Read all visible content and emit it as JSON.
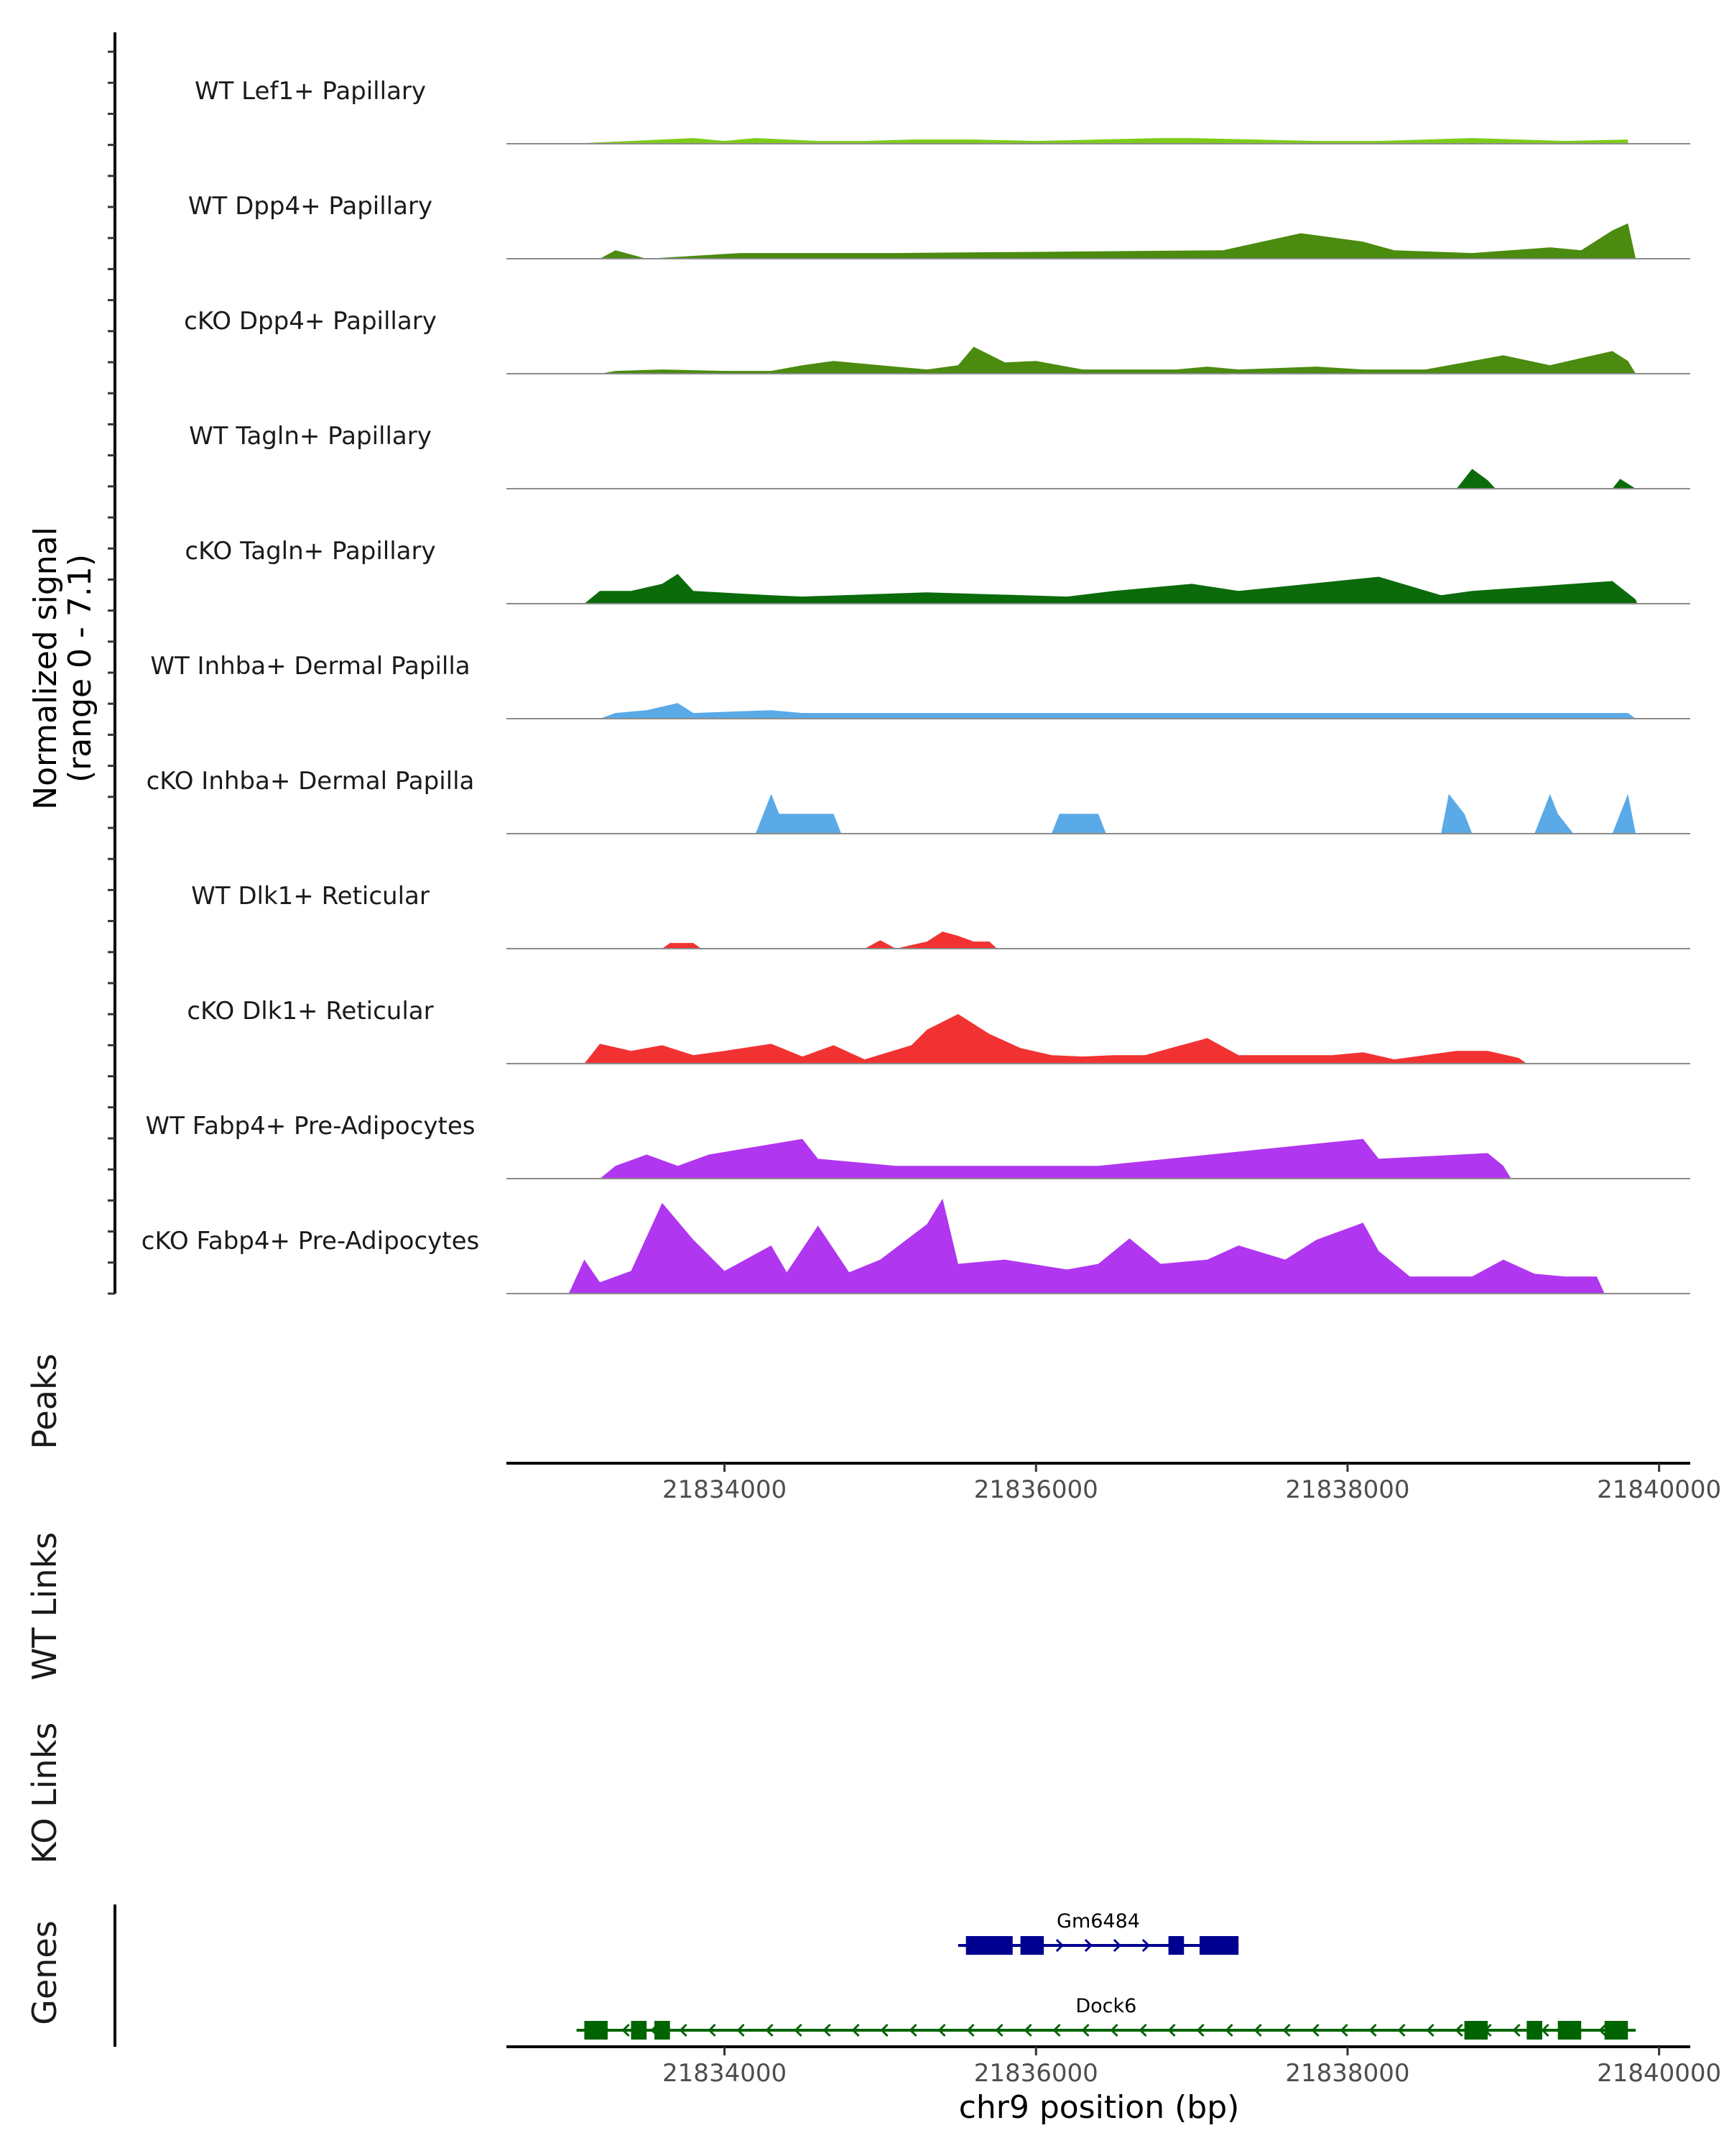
{
  "chart_data": {
    "type": "area",
    "chromosome": "chr9",
    "xlabel": "chr9 position (bp)",
    "xlim": [
      21832600,
      21840200
    ],
    "xticks": [
      21834000,
      21836000,
      21838000,
      21840000
    ],
    "xtick_labels": [
      "21834000",
      "21836000",
      "21838000",
      "21840000"
    ],
    "coverage_ylabel_line1": "Normalized signal",
    "coverage_ylabel_line2": "(range 0 - 7.1)",
    "ylim": [
      0,
      7.1
    ],
    "panel_labels": {
      "peaks": "Peaks",
      "wt_links": "WT Links",
      "ko_links": "KO Links",
      "genes": "Genes"
    },
    "series": [
      {
        "name": "WT Lef1+ Papillary",
        "color": "#7CCD1A",
        "points": [
          [
            21833000,
            0
          ],
          [
            21833400,
            0.2
          ],
          [
            21833600,
            0.3
          ],
          [
            21833800,
            0.4
          ],
          [
            21834000,
            0.2
          ],
          [
            21834200,
            0.4
          ],
          [
            21834400,
            0.3
          ],
          [
            21834600,
            0.2
          ],
          [
            21834900,
            0.2
          ],
          [
            21835200,
            0.3
          ],
          [
            21835600,
            0.3
          ],
          [
            21836000,
            0.2
          ],
          [
            21836400,
            0.3
          ],
          [
            21836800,
            0.4
          ],
          [
            21837000,
            0.4
          ],
          [
            21837400,
            0.3
          ],
          [
            21837800,
            0.2
          ],
          [
            21838200,
            0.2
          ],
          [
            21838800,
            0.4
          ],
          [
            21839100,
            0.3
          ],
          [
            21839400,
            0.2
          ],
          [
            21839800,
            0.3
          ]
        ]
      },
      {
        "name": "WT Dpp4+ Papillary",
        "color": "#4B8B0F",
        "points": [
          [
            21833200,
            0
          ],
          [
            21833300,
            0.6
          ],
          [
            21833500,
            0
          ],
          [
            21834100,
            0.4
          ],
          [
            21834500,
            0.4
          ],
          [
            21834900,
            0.4
          ],
          [
            21835100,
            0.4
          ],
          [
            21837200,
            0.6
          ],
          [
            21837700,
            1.8
          ],
          [
            21838100,
            1.2
          ],
          [
            21838300,
            0.6
          ],
          [
            21838800,
            0.4
          ],
          [
            21839300,
            0.8
          ],
          [
            21839500,
            0.6
          ],
          [
            21839700,
            2.0
          ],
          [
            21839800,
            2.5
          ],
          [
            21839850,
            0
          ]
        ]
      },
      {
        "name": "cKO Dpp4+ Papillary",
        "color": "#4B8B0F",
        "points": [
          [
            21833200,
            0
          ],
          [
            21833300,
            0.2
          ],
          [
            21833600,
            0.3
          ],
          [
            21834000,
            0.2
          ],
          [
            21834300,
            0.2
          ],
          [
            21834500,
            0.6
          ],
          [
            21834700,
            0.9
          ],
          [
            21835000,
            0.6
          ],
          [
            21835300,
            0.3
          ],
          [
            21835500,
            0.6
          ],
          [
            21835600,
            1.9
          ],
          [
            21835800,
            0.8
          ],
          [
            21836000,
            0.9
          ],
          [
            21836300,
            0.3
          ],
          [
            21836600,
            0.3
          ],
          [
            21836900,
            0.3
          ],
          [
            21837100,
            0.5
          ],
          [
            21837300,
            0.3
          ],
          [
            21837800,
            0.5
          ],
          [
            21838100,
            0.3
          ],
          [
            21838500,
            0.3
          ],
          [
            21839000,
            1.3
          ],
          [
            21839300,
            0.6
          ],
          [
            21839500,
            1.1
          ],
          [
            21839700,
            1.6
          ],
          [
            21839800,
            0.9
          ],
          [
            21839850,
            0
          ]
        ]
      },
      {
        "name": "WT Tagln+ Papillary",
        "color": "#0B6B0B",
        "points": [
          [
            21838700,
            0
          ],
          [
            21838800,
            1.4
          ],
          [
            21838900,
            0.6
          ],
          [
            21838950,
            0
          ],
          [
            21839700,
            0
          ],
          [
            21839750,
            0.7
          ],
          [
            21839850,
            0
          ]
        ]
      },
      {
        "name": "cKO Tagln+ Papillary",
        "color": "#0B6B0B",
        "points": [
          [
            21833100,
            0
          ],
          [
            21833200,
            0.9
          ],
          [
            21833400,
            0.9
          ],
          [
            21833600,
            1.4
          ],
          [
            21833700,
            2.1
          ],
          [
            21833800,
            0.9
          ],
          [
            21834300,
            0.6
          ],
          [
            21834500,
            0.5
          ],
          [
            21835300,
            0.8
          ],
          [
            21836200,
            0.5
          ],
          [
            21836500,
            0.9
          ],
          [
            21837000,
            1.4
          ],
          [
            21837300,
            0.9
          ],
          [
            21838200,
            1.9
          ],
          [
            21838600,
            0.6
          ],
          [
            21838800,
            0.9
          ],
          [
            21839700,
            1.6
          ],
          [
            21839850,
            0.3
          ],
          [
            21839860,
            0
          ]
        ]
      },
      {
        "name": "WT Inhba+ Dermal Papilla",
        "color": "#5AAAE8",
        "points": [
          [
            21833200,
            0
          ],
          [
            21833300,
            0.4
          ],
          [
            21833500,
            0.6
          ],
          [
            21833700,
            1.1
          ],
          [
            21833800,
            0.4
          ],
          [
            21834300,
            0.6
          ],
          [
            21834500,
            0.4
          ],
          [
            21835200,
            0.4
          ],
          [
            21835500,
            0.4
          ],
          [
            21835900,
            0.4
          ],
          [
            21836100,
            0.4
          ],
          [
            21836400,
            0.4
          ],
          [
            21839400,
            0.4
          ],
          [
            21839600,
            0.4
          ],
          [
            21839800,
            0.4
          ],
          [
            21839850,
            0
          ]
        ]
      },
      {
        "name": "cKO Inhba+ Dermal Papilla",
        "color": "#5AAAE8",
        "points": [
          [
            21834200,
            0
          ],
          [
            21834300,
            2.8
          ],
          [
            21834350,
            1.4
          ],
          [
            21834500,
            1.4
          ],
          [
            21834700,
            1.4
          ],
          [
            21834750,
            0
          ],
          [
            21836100,
            0
          ],
          [
            21836150,
            1.4
          ],
          [
            21836400,
            1.4
          ],
          [
            21836450,
            0
          ],
          [
            21838600,
            0
          ],
          [
            21838650,
            2.8
          ],
          [
            21838750,
            1.4
          ],
          [
            21838800,
            0
          ],
          [
            21839200,
            0
          ],
          [
            21839300,
            2.8
          ],
          [
            21839350,
            1.4
          ],
          [
            21839450,
            0
          ],
          [
            21839700,
            0
          ],
          [
            21839800,
            2.8
          ],
          [
            21839850,
            0
          ]
        ]
      },
      {
        "name": "WT Dlk1+ Reticular",
        "color": "#F23232",
        "points": [
          [
            21833600,
            0
          ],
          [
            21833650,
            0.4
          ],
          [
            21833800,
            0.4
          ],
          [
            21833850,
            0
          ],
          [
            21834900,
            0
          ],
          [
            21835000,
            0.6
          ],
          [
            21835100,
            0
          ],
          [
            21835300,
            0.5
          ],
          [
            21835400,
            1.2
          ],
          [
            21835500,
            0.9
          ],
          [
            21835600,
            0.5
          ],
          [
            21835700,
            0.5
          ],
          [
            21835750,
            0
          ]
        ]
      },
      {
        "name": "cKO Dlk1+ Reticular",
        "color": "#F23232",
        "points": [
          [
            21833100,
            0
          ],
          [
            21833200,
            1.4
          ],
          [
            21833400,
            0.9
          ],
          [
            21833600,
            1.3
          ],
          [
            21833800,
            0.6
          ],
          [
            21834000,
            0.9
          ],
          [
            21834300,
            1.4
          ],
          [
            21834500,
            0.5
          ],
          [
            21834700,
            1.3
          ],
          [
            21834900,
            0.3
          ],
          [
            21835200,
            1.3
          ],
          [
            21835300,
            2.4
          ],
          [
            21835500,
            3.5
          ],
          [
            21835700,
            2.1
          ],
          [
            21835900,
            1.1
          ],
          [
            21836100,
            0.6
          ],
          [
            21836300,
            0.5
          ],
          [
            21836500,
            0.6
          ],
          [
            21836700,
            0.6
          ],
          [
            21836900,
            1.2
          ],
          [
            21837100,
            1.8
          ],
          [
            21837300,
            0.6
          ],
          [
            21837500,
            0.6
          ],
          [
            21837700,
            0.6
          ],
          [
            21837900,
            0.6
          ],
          [
            21838100,
            0.8
          ],
          [
            21838300,
            0.3
          ],
          [
            21838700,
            0.9
          ],
          [
            21838900,
            0.9
          ],
          [
            21839100,
            0.4
          ],
          [
            21839150,
            0
          ]
        ]
      },
      {
        "name": "WT Fabp4+ Pre-Adipocytes",
        "color": "#B036F0",
        "points": [
          [
            21833200,
            0
          ],
          [
            21833300,
            0.9
          ],
          [
            21833500,
            1.7
          ],
          [
            21833700,
            0.9
          ],
          [
            21833900,
            1.7
          ],
          [
            21834500,
            2.8
          ],
          [
            21834600,
            1.4
          ],
          [
            21835100,
            0.9
          ],
          [
            21836100,
            0.9
          ],
          [
            21836400,
            0.9
          ],
          [
            21838100,
            2.8
          ],
          [
            21838200,
            1.4
          ],
          [
            21838900,
            1.8
          ],
          [
            21839000,
            0.9
          ],
          [
            21839050,
            0
          ]
        ]
      },
      {
        "name": "cKO Fabp4+ Pre-Adipocytes",
        "color": "#B036F0",
        "points": [
          [
            21833000,
            0
          ],
          [
            21833100,
            2.4
          ],
          [
            21833200,
            0.8
          ],
          [
            21833400,
            1.6
          ],
          [
            21833600,
            6.4
          ],
          [
            21833800,
            3.8
          ],
          [
            21834000,
            1.6
          ],
          [
            21834300,
            3.4
          ],
          [
            21834400,
            1.5
          ],
          [
            21834600,
            4.8
          ],
          [
            21834800,
            1.5
          ],
          [
            21835000,
            2.4
          ],
          [
            21835300,
            4.9
          ],
          [
            21835400,
            6.7
          ],
          [
            21835500,
            2.1
          ],
          [
            21835800,
            2.4
          ],
          [
            21836200,
            1.7
          ],
          [
            21836400,
            2.1
          ],
          [
            21836600,
            3.9
          ],
          [
            21836800,
            2.1
          ],
          [
            21837100,
            2.4
          ],
          [
            21837300,
            3.4
          ],
          [
            21837600,
            2.4
          ],
          [
            21837800,
            3.8
          ],
          [
            21838100,
            5.0
          ],
          [
            21838200,
            3.0
          ],
          [
            21838400,
            1.2
          ],
          [
            21838600,
            1.2
          ],
          [
            21838800,
            1.2
          ],
          [
            21839000,
            2.4
          ],
          [
            21839200,
            1.4
          ],
          [
            21839400,
            1.2
          ],
          [
            21839600,
            1.2
          ],
          [
            21839650,
            0
          ]
        ]
      }
    ],
    "genes": [
      {
        "name": "Gm6484",
        "strand": "+",
        "color": "#000090",
        "start": 21835500,
        "end": 21837300,
        "exons": [
          [
            21835550,
            21835850
          ],
          [
            21835900,
            21836050
          ],
          [
            21836850,
            21836950
          ],
          [
            21837050,
            21837300
          ]
        ]
      },
      {
        "name": "Dock6",
        "strand": "-",
        "color": "#006400",
        "start": 21833050,
        "end": 21839850,
        "exons": [
          [
            21833100,
            21833250
          ],
          [
            21833400,
            21833500
          ],
          [
            21833550,
            21833650
          ],
          [
            21838750,
            21838900
          ],
          [
            21839150,
            21839250
          ],
          [
            21839350,
            21839500
          ],
          [
            21839650,
            21839800
          ]
        ]
      }
    ]
  }
}
